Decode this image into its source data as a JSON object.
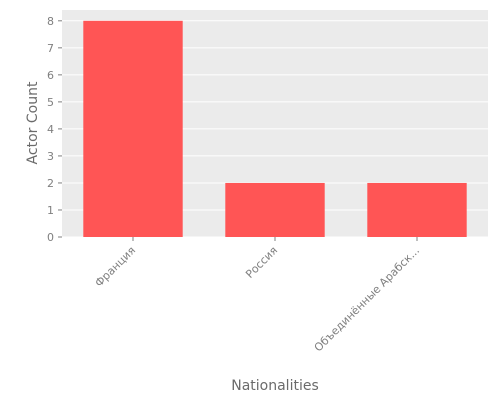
{
  "chart_data": {
    "type": "bar",
    "categories": [
      "Франция",
      "Россия",
      "Объединённые Арабск..."
    ],
    "values": [
      8,
      2,
      2
    ],
    "xlabel": "Nationalities",
    "ylabel": "Actor Count",
    "ylim": [
      0,
      8.4
    ],
    "yticks": [
      "0",
      "1",
      "2",
      "3",
      "4",
      "5",
      "6",
      "7",
      "8"
    ],
    "grid": true,
    "colors": {
      "bar": "#ff5555",
      "plot_background": "#ebebeb",
      "grid": "#ffffff"
    }
  }
}
